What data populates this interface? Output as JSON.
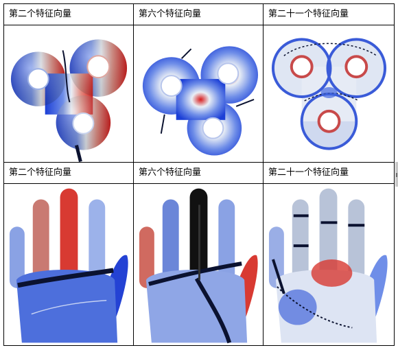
{
  "figure": {
    "row1": {
      "col1_caption": "第二个特征向量",
      "col2_caption": "第六个特征向量",
      "col3_caption": "第二十一个特征向量"
    },
    "row2": {
      "col1_caption": "第二个特征向量",
      "col2_caption": "第六个特征向量",
      "col3_caption": "第二十一个特征向量"
    }
  },
  "colors": {
    "negative": "#1c3fd6",
    "neutral": "#e9eef5",
    "positive": "#d81c1c",
    "nodal_line": "#0b1230",
    "grid": "#000000"
  },
  "icons": [
    "triple-torus-mesh-image",
    "hand-mesh-image"
  ]
}
